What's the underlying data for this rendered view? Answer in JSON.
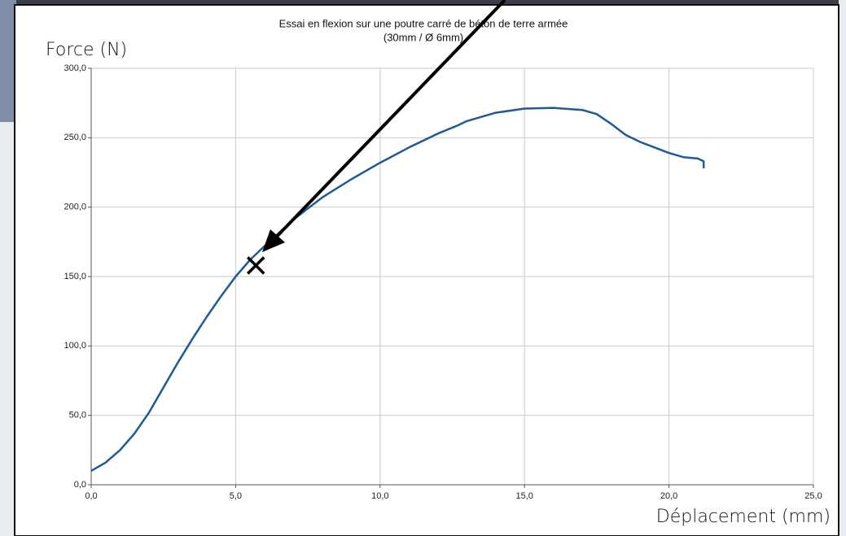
{
  "chart_data": {
    "type": "line",
    "title": "Essai en flexion sur une poutre carré de béton de terre armée",
    "subtitle": "(30mm / Ø 6mm)",
    "x_label": "Déplacement (mm)",
    "y_label": "Force (N)",
    "x": [
      0,
      0.5,
      1,
      1.5,
      2,
      2.5,
      3,
      3.5,
      4,
      4.5,
      5,
      5.5,
      6,
      7,
      8,
      9,
      10,
      11,
      12,
      12.7,
      13,
      14,
      15,
      16,
      17,
      17.5,
      18,
      18.5,
      19,
      19.5,
      20,
      20.5,
      21,
      21.2,
      21.2
    ],
    "values": [
      10,
      16,
      25,
      37,
      52,
      70,
      88,
      105,
      121,
      136,
      150,
      162,
      172,
      191,
      207,
      220,
      232,
      243,
      253,
      259,
      262,
      268,
      271,
      271.5,
      270,
      267,
      260,
      252,
      247,
      243,
      239,
      236,
      235,
      233,
      228
    ],
    "color": "#1f5a96",
    "marker": {
      "x": 5.7,
      "y": 158
    },
    "xlim": [
      0,
      25
    ],
    "ylim": [
      0,
      300
    ],
    "xticks": [
      {
        "value": 0,
        "label": "0,0"
      },
      {
        "value": 5,
        "label": "5,0"
      },
      {
        "value": 10,
        "label": "10,0"
      },
      {
        "value": 15,
        "label": "15,0"
      },
      {
        "value": 20,
        "label": "20,0"
      },
      {
        "value": 25,
        "label": "25,0"
      }
    ],
    "yticks": [
      {
        "value": 0,
        "label": "0,0"
      },
      {
        "value": 50,
        "label": "50,0"
      },
      {
        "value": 100,
        "label": "100,0"
      },
      {
        "value": 150,
        "label": "150,0"
      },
      {
        "value": 200,
        "label": "200,0"
      },
      {
        "value": 250,
        "label": "250,0"
      },
      {
        "value": 300,
        "label": "300,0"
      }
    ],
    "grid": true
  }
}
